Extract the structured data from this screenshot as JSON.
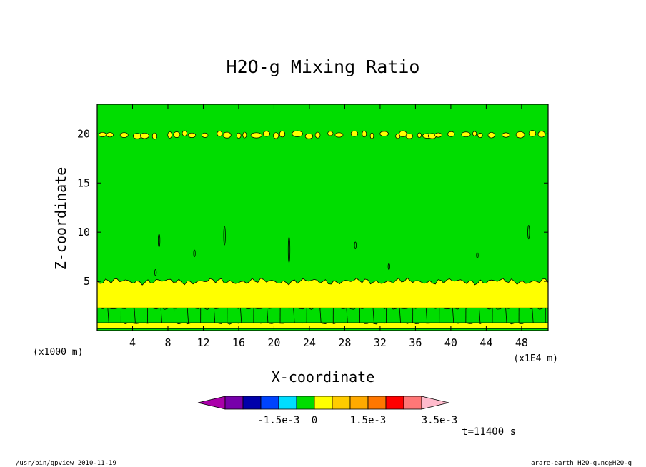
{
  "chart_data": {
    "type": "heatmap",
    "title": "H2O-g Mixing Ratio",
    "xlabel": "X-coordinate",
    "ylabel": "Z-coordinate",
    "x_unit": "(x1E4 m)",
    "y_unit": "(x1000 m)",
    "xlim": [
      0,
      51
    ],
    "ylim": [
      0,
      23
    ],
    "x_ticks": [
      4,
      8,
      12,
      16,
      20,
      24,
      28,
      32,
      36,
      40,
      44,
      48
    ],
    "y_ticks": [
      5,
      10,
      15,
      20
    ],
    "time_label": "t=11400 s",
    "colorbar": {
      "colors": [
        "#aa00aa",
        "#7700aa",
        "#0000aa",
        "#0044ff",
        "#00ddff",
        "#00dd00",
        "#ffff00",
        "#ffcc00",
        "#ffaa00",
        "#ff7700",
        "#ff0000",
        "#ff7777",
        "#ffbbcc"
      ],
      "tick_labels": [
        "-1.5e-3",
        "0",
        "1.5e-3",
        "3.5e-3"
      ],
      "tick_boundary_index": [
        3,
        5,
        8,
        12
      ]
    },
    "background_color": "#00dd00",
    "bands": [
      {
        "color": "#ffff00",
        "z_range": [
          0.2,
          0.8
        ]
      },
      {
        "color": "#00dd00",
        "z_range": [
          0.8,
          2.3
        ]
      },
      {
        "color": "#ffff00",
        "z_range": [
          2.3,
          5.0
        ]
      },
      {
        "color": "#00dd00",
        "z_range": [
          5.0,
          23
        ]
      }
    ],
    "blobs_z": 19.9
  },
  "footer": {
    "left": "/usr/bin/gpview   2010-11-19",
    "right": "arare-earth_H2O-g.nc@H2O-g"
  }
}
